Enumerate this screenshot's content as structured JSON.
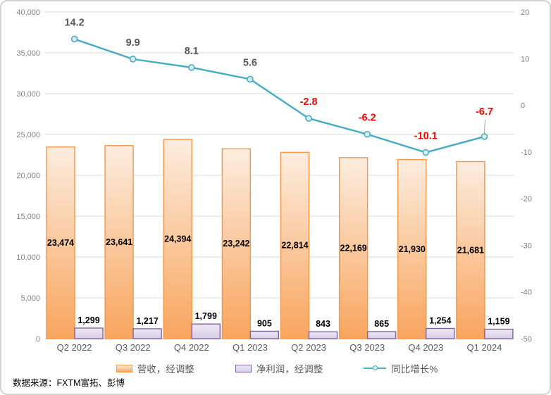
{
  "chart_data": {
    "type": "combo",
    "categories": [
      "Q2 2022",
      "Q3 2022",
      "Q4 2022",
      "Q1 2023",
      "Q2 2023",
      "Q3 2023",
      "Q4 2023",
      "Q1 2024"
    ],
    "series": [
      {
        "name": "营收，经调整",
        "type": "bar",
        "axis": "left",
        "values": [
          23474,
          23641,
          24394,
          23242,
          22814,
          22169,
          21930,
          21681
        ],
        "labels": [
          "23,474",
          "23,641",
          "24,394",
          "23,242",
          "22,814",
          "22,169",
          "21,930",
          "21,681"
        ],
        "fill_top": "#FCEDDF",
        "fill_bottom": "#F8A55E",
        "border": "#F79646",
        "label_color": "#000000"
      },
      {
        "name": "净利润，经调整",
        "type": "bar",
        "axis": "left",
        "values": [
          1299,
          1217,
          1799,
          905,
          843,
          865,
          1254,
          1159
        ],
        "labels": [
          "1,299",
          "1,217",
          "1,799",
          "905",
          "843",
          "865",
          "1,254",
          "1,159"
        ],
        "fill_top": "#EFEAF5",
        "fill_bottom": "#D7CCE6",
        "border": "#8064A2",
        "label_color": "#000000"
      },
      {
        "name": "同比增长%",
        "type": "line",
        "axis": "right",
        "values": [
          14.2,
          9.9,
          8.1,
          5.6,
          -2.8,
          -6.2,
          -10.1,
          -6.7
        ],
        "labels": [
          "14.2",
          "9.9",
          "8.1",
          "5.6",
          "-2.8",
          "-6.2",
          "-10.1",
          "-6.7"
        ],
        "color": "#4BACC6",
        "marker_fill": "#D9EDF5",
        "label_color_positive": "#595959",
        "label_color_negative": "#FF0000",
        "label_offsets": [
          -19,
          -19,
          -19,
          -19,
          -19,
          -19,
          -19,
          -31
        ],
        "leader_line": [
          false,
          false,
          false,
          false,
          false,
          false,
          false,
          true
        ]
      }
    ],
    "left_axis": {
      "min": 0,
      "max": 40000,
      "step": 5000,
      "tick_labels": [
        "40,000",
        "35,000",
        "30,000",
        "25,000",
        "20,000",
        "15,000",
        "10,000",
        "5,000",
        "0"
      ]
    },
    "right_axis": {
      "min": -50,
      "max": 20,
      "step": 10,
      "tick_labels": [
        "20",
        "10",
        "0",
        "-10",
        "-20",
        "-30",
        "-40",
        "-50"
      ]
    },
    "grid": true,
    "legend_position": "bottom",
    "colors": {
      "gridline": "#D9D9D9",
      "axis_line": "#BFBFBF",
      "tick_text": "#808080",
      "category_text": "#595959",
      "leader": "#A6A6A6"
    }
  },
  "footer": {
    "source": "数据来源：FXTM富拓、彭博"
  }
}
